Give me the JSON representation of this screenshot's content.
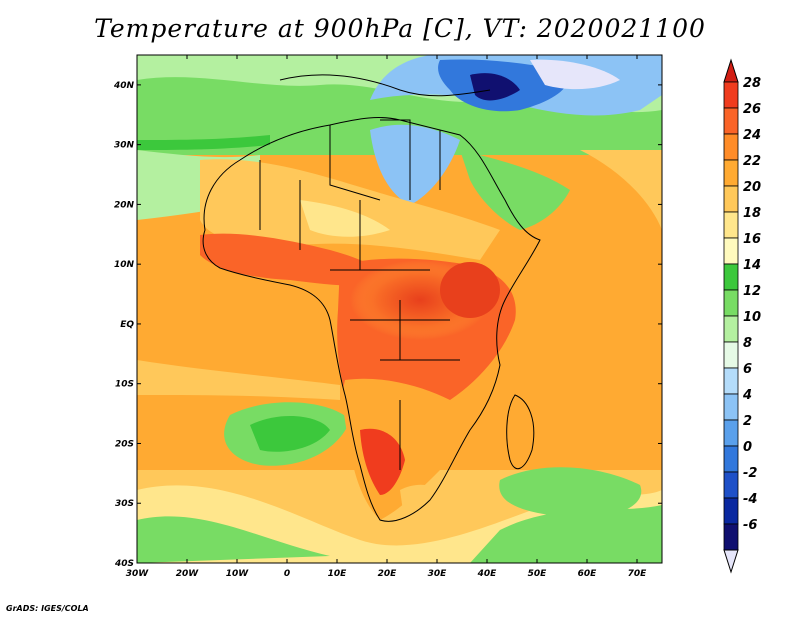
{
  "title": "Temperature at 900hPa [C], VT: 2020021100",
  "credit": "GrADS: IGES/COLA",
  "map": {
    "lon_range": [
      -30,
      75
    ],
    "lat_range": [
      -40,
      45
    ],
    "lon_ticks": [
      "30W",
      "20W",
      "10W",
      "0",
      "10E",
      "20E",
      "30E",
      "40E",
      "50E",
      "60E",
      "70E"
    ],
    "lat_ticks": [
      "40N",
      "30N",
      "20N",
      "10N",
      "EQ",
      "10S",
      "20S",
      "30S",
      "40S"
    ]
  },
  "colorbar": {
    "labels": [
      "28",
      "26",
      "24",
      "22",
      "20",
      "18",
      "16",
      "14",
      "12",
      "10",
      "8",
      "6",
      "4",
      "2",
      "0",
      "-2",
      "-4",
      "-6"
    ],
    "colors": [
      "#f03c1e",
      "#fa6428",
      "#ff8c28",
      "#ffaa32",
      "#ffc85a",
      "#ffe68c",
      "#fffabe",
      "#3cc83c",
      "#78dc64",
      "#b4f0a0",
      "#e6fae6",
      "#b4dcfa",
      "#8cc3f5",
      "#5aa0eb",
      "#3278dc",
      "#1e50c8",
      "#0a28a0",
      "#101070"
    ],
    "top_color": "#d21e14",
    "bottom_color": "#e6e6fa"
  }
}
